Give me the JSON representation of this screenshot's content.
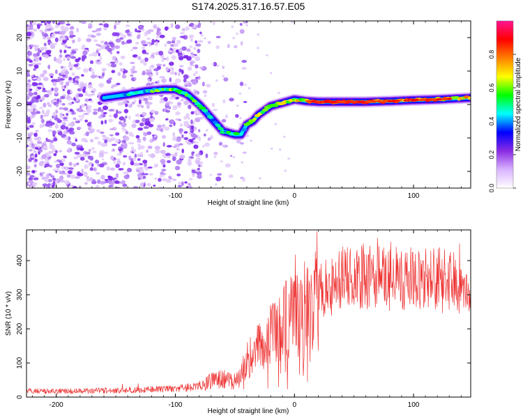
{
  "title": "S174.2025.317.16.57.E05",
  "chart_data": [
    {
      "type": "heatmap",
      "xlabel": "Height of straight line (km)",
      "ylabel": "Frequency (Hz)",
      "xlim": [
        -225,
        148
      ],
      "ylim": [
        -25,
        25
      ],
      "xticks": [
        -200,
        -100,
        0,
        100
      ],
      "yticks": [
        -20,
        -10,
        0,
        10,
        20
      ],
      "colorbar": {
        "label": "Normalized spectral amplitude",
        "range": [
          0,
          1
        ],
        "ticks": [
          "0.0",
          "0.2",
          "0.4",
          "0.6",
          "0.8"
        ],
        "tick_values": [
          0.0,
          0.2,
          0.4,
          0.6,
          0.8
        ],
        "colors": [
          "#ffffff",
          "#d9b3ff",
          "#8a2be2",
          "#0000ff",
          "#00ffff",
          "#00ff00",
          "#ffff00",
          "#ff8000",
          "#ff0000",
          "#ff1493"
        ]
      },
      "ridge": {
        "x": [
          -160,
          -150,
          -140,
          -125,
          -110,
          -100,
          -90,
          -80,
          -70,
          -60,
          -50,
          -45,
          -40,
          -35,
          -30,
          -20,
          -10,
          0,
          10,
          20,
          40,
          60,
          80,
          100,
          120,
          148
        ],
        "freq": [
          2,
          2.5,
          3,
          4,
          4.5,
          4.5,
          3,
          0,
          -4,
          -8,
          -9,
          -9,
          -6,
          -5,
          -3,
          -0.5,
          0.5,
          1.5,
          1,
          0.8,
          0.8,
          0.8,
          1,
          1.3,
          1.5,
          2
        ],
        "amplitude": [
          0.3,
          0.35,
          0.4,
          0.5,
          0.55,
          0.6,
          0.55,
          0.5,
          0.45,
          0.45,
          0.5,
          0.4,
          0.55,
          0.7,
          0.6,
          0.55,
          0.6,
          0.6,
          0.7,
          0.85,
          0.9,
          0.85,
          0.8,
          0.8,
          0.75,
          0.7
        ]
      }
    },
    {
      "type": "line",
      "xlabel": "Height of straight line (km)",
      "ylabel": "SNR (10 * v/v)",
      "xlim": [
        -225,
        148
      ],
      "ylim": [
        0,
        490
      ],
      "xticks": [
        -200,
        -100,
        0,
        100
      ],
      "yticks": [
        0,
        100,
        200,
        300,
        400
      ],
      "series": [
        {
          "name": "SNR",
          "color": "#ee3333",
          "x": [
            -225,
            -200,
            -180,
            -160,
            -140,
            -120,
            -100,
            -90,
            -80,
            -70,
            -60,
            -50,
            -45,
            -40,
            -35,
            -30,
            -25,
            -20,
            -15,
            -10,
            -5,
            0,
            5,
            10,
            15,
            20,
            25,
            30,
            40,
            50,
            60,
            70,
            80,
            90,
            100,
            110,
            120,
            130,
            140,
            148
          ],
          "values": [
            18,
            17,
            18,
            19,
            20,
            22,
            24,
            28,
            35,
            45,
            55,
            45,
            60,
            110,
            120,
            140,
            160,
            175,
            200,
            210,
            230,
            235,
            250,
            265,
            280,
            295,
            315,
            330,
            350,
            355,
            350,
            345,
            350,
            345,
            345,
            340,
            345,
            335,
            330,
            330
          ]
        }
      ]
    }
  ]
}
